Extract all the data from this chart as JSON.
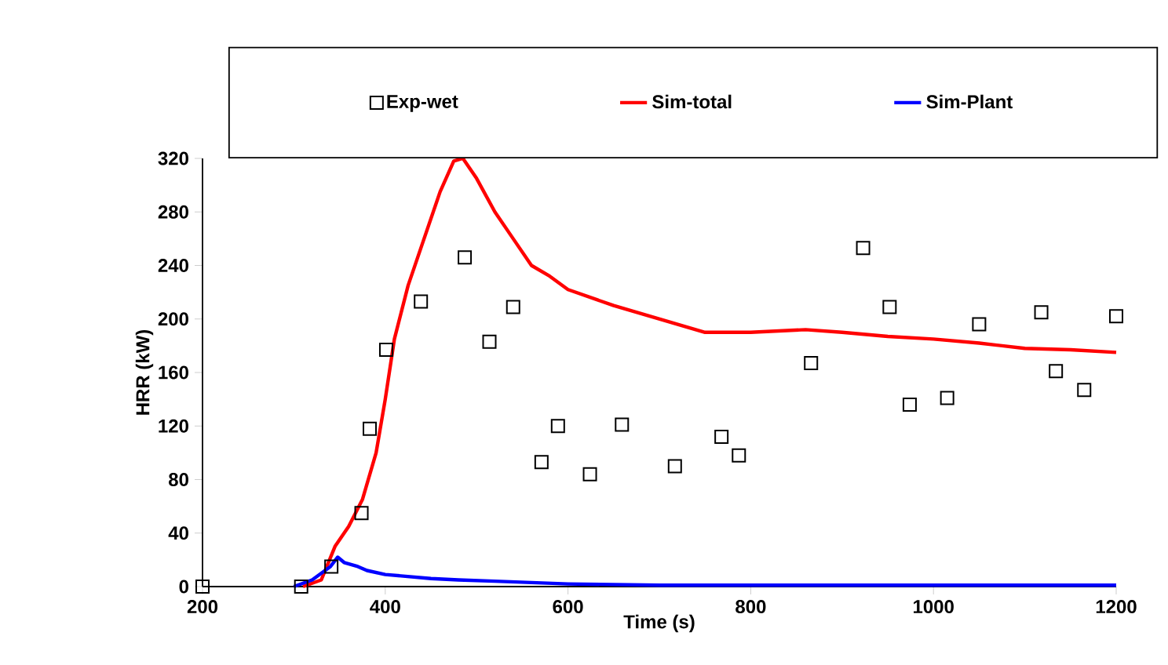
{
  "chart_data": {
    "type": "line",
    "xlabel": "Time (s)",
    "ylabel": "HRR (kW)",
    "xlim": [
      200,
      1200
    ],
    "ylim": [
      0,
      320
    ],
    "xticks": [
      200,
      400,
      600,
      800,
      1000,
      1200
    ],
    "yticks": [
      0,
      40,
      80,
      120,
      160,
      200,
      240,
      280,
      320
    ],
    "legend": "top",
    "series": [
      {
        "name": "Exp-wet",
        "type": "scatter",
        "marker": "square",
        "color": "#000000",
        "x": [
          200,
          308,
          341,
          374,
          383,
          401,
          439,
          487,
          514,
          540,
          571,
          589,
          624,
          659,
          717,
          768,
          787,
          866,
          923,
          952,
          974,
          1015,
          1050,
          1118,
          1134,
          1165,
          1200
        ],
        "values": [
          0,
          0,
          15,
          55,
          118,
          177,
          213,
          246,
          183,
          209,
          93,
          120,
          84,
          121,
          90,
          112,
          98,
          167,
          253,
          209,
          136,
          141,
          196,
          205,
          161,
          147,
          202
        ]
      },
      {
        "name": "Sim-total",
        "color": "#ff0000",
        "x": [
          310,
          330,
          345,
          360,
          375,
          390,
          400,
          410,
          425,
          440,
          460,
          475,
          485,
          500,
          520,
          540,
          560,
          580,
          600,
          650,
          700,
          750,
          800,
          860,
          900,
          950,
          1000,
          1050,
          1100,
          1150,
          1200
        ],
        "values": [
          0,
          5,
          30,
          45,
          65,
          100,
          140,
          185,
          225,
          255,
          295,
          318,
          320,
          305,
          280,
          260,
          240,
          232,
          222,
          210,
          200,
          190,
          190,
          192,
          190,
          187,
          185,
          182,
          178,
          177,
          175
        ]
      },
      {
        "name": "Sim-Plant",
        "color": "#0000ff",
        "x": [
          300,
          320,
          340,
          348,
          355,
          370,
          380,
          400,
          450,
          480,
          520,
          600,
          700,
          800,
          1000,
          1200
        ],
        "values": [
          0,
          5,
          15,
          22,
          18,
          15,
          12,
          9,
          6,
          5,
          4,
          2,
          1,
          1,
          1,
          1
        ]
      }
    ]
  }
}
